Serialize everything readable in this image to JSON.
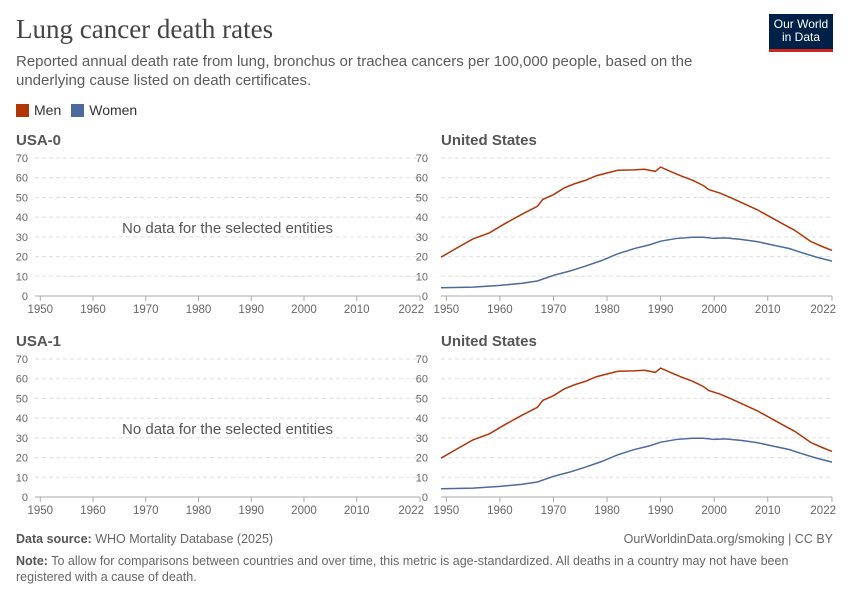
{
  "header": {
    "title": "Lung cancer death rates",
    "subtitle": "Reported annual death rate from lung, bronchus or trachea cancers per 100,000 people, based on the underlying cause listed on death certificates.",
    "logo": "Our World in Data"
  },
  "legend": [
    {
      "name": "Men",
      "color": "#b13507"
    },
    {
      "name": "Women",
      "color": "#4c6a9c"
    }
  ],
  "footer": {
    "source_label": "Data source:",
    "source": "WHO Mortality Database (2025)",
    "url": "OurWorldinData.org/smoking | CC BY",
    "note_label": "Note:",
    "note": "To allow for comparisons between countries and over time, this metric is age-standardized. All deaths in a country may not have been registered with a cause of death."
  },
  "no_data_text": "No data for the selected entities",
  "chart_data": [
    {
      "type": "line",
      "title": "USA-0",
      "xlim": [
        1949,
        2022
      ],
      "ylim": [
        0,
        70
      ],
      "yticks": [
        0,
        10,
        20,
        30,
        40,
        50,
        60,
        70
      ],
      "xticks": [
        1950,
        1960,
        1970,
        1980,
        1990,
        2000,
        2010,
        2022
      ],
      "grid": true,
      "series": []
    },
    {
      "type": "line",
      "title": "United States",
      "xlim": [
        1949,
        2022
      ],
      "ylim": [
        0,
        70
      ],
      "yticks": [
        0,
        10,
        20,
        30,
        40,
        50,
        60,
        70
      ],
      "xticks": [
        1950,
        1960,
        1970,
        1980,
        1990,
        2000,
        2010,
        2022
      ],
      "grid": true,
      "series": "us"
    },
    {
      "type": "line",
      "title": "USA-1",
      "xlim": [
        1949,
        2022
      ],
      "ylim": [
        0,
        70
      ],
      "yticks": [
        0,
        10,
        20,
        30,
        40,
        50,
        60,
        70
      ],
      "xticks": [
        1950,
        1960,
        1970,
        1980,
        1990,
        2000,
        2010,
        2022
      ],
      "grid": true,
      "series": []
    },
    {
      "type": "line",
      "title": "United States",
      "xlim": [
        1949,
        2022
      ],
      "ylim": [
        0,
        70
      ],
      "yticks": [
        0,
        10,
        20,
        30,
        40,
        50,
        60,
        70
      ],
      "xticks": [
        1950,
        1960,
        1970,
        1980,
        1990,
        2000,
        2010,
        2022
      ],
      "grid": true,
      "series": "us"
    }
  ],
  "us_series": [
    {
      "name": "Men",
      "color": "#b13507",
      "points": [
        [
          1949,
          19.7
        ],
        [
          1952,
          24.4
        ],
        [
          1955,
          29
        ],
        [
          1958,
          32
        ],
        [
          1961,
          36.8
        ],
        [
          1964,
          41.3
        ],
        [
          1967,
          45.5
        ],
        [
          1968,
          49
        ],
        [
          1970,
          51.4
        ],
        [
          1972,
          54.8
        ],
        [
          1974,
          57
        ],
        [
          1976,
          58.7
        ],
        [
          1978,
          61
        ],
        [
          1980,
          62.4
        ],
        [
          1982,
          63.8
        ],
        [
          1985,
          64
        ],
        [
          1987,
          64.3
        ],
        [
          1989,
          63.2
        ],
        [
          1990,
          65.4
        ],
        [
          1992,
          63
        ],
        [
          1994,
          60.7
        ],
        [
          1996,
          58.7
        ],
        [
          1998,
          56
        ],
        [
          1999,
          54
        ],
        [
          2001,
          52.3
        ],
        [
          2003,
          50
        ],
        [
          2005,
          47.5
        ],
        [
          2008,
          43.8
        ],
        [
          2010,
          40.8
        ],
        [
          2013,
          36.3
        ],
        [
          2015,
          33.4
        ],
        [
          2018,
          27.7
        ],
        [
          2020,
          25.3
        ],
        [
          2022,
          23.1
        ]
      ]
    },
    {
      "name": "Women",
      "color": "#4c6a9c",
      "points": [
        [
          1949,
          4.2
        ],
        [
          1955,
          4.5
        ],
        [
          1960,
          5.4
        ],
        [
          1964,
          6.4
        ],
        [
          1967,
          7.6
        ],
        [
          1970,
          10.5
        ],
        [
          1973,
          12.6
        ],
        [
          1976,
          15.2
        ],
        [
          1979,
          18
        ],
        [
          1982,
          21.4
        ],
        [
          1985,
          24
        ],
        [
          1988,
          26
        ],
        [
          1990,
          27.8
        ],
        [
          1993,
          29.2
        ],
        [
          1996,
          29.8
        ],
        [
          1998,
          29.8
        ],
        [
          2000,
          29.2
        ],
        [
          2002,
          29.5
        ],
        [
          2005,
          28.7
        ],
        [
          2008,
          27.6
        ],
        [
          2011,
          25.8
        ],
        [
          2014,
          24.1
        ],
        [
          2016,
          22.3
        ],
        [
          2019,
          19.8
        ],
        [
          2022,
          17.7
        ]
      ]
    }
  ]
}
